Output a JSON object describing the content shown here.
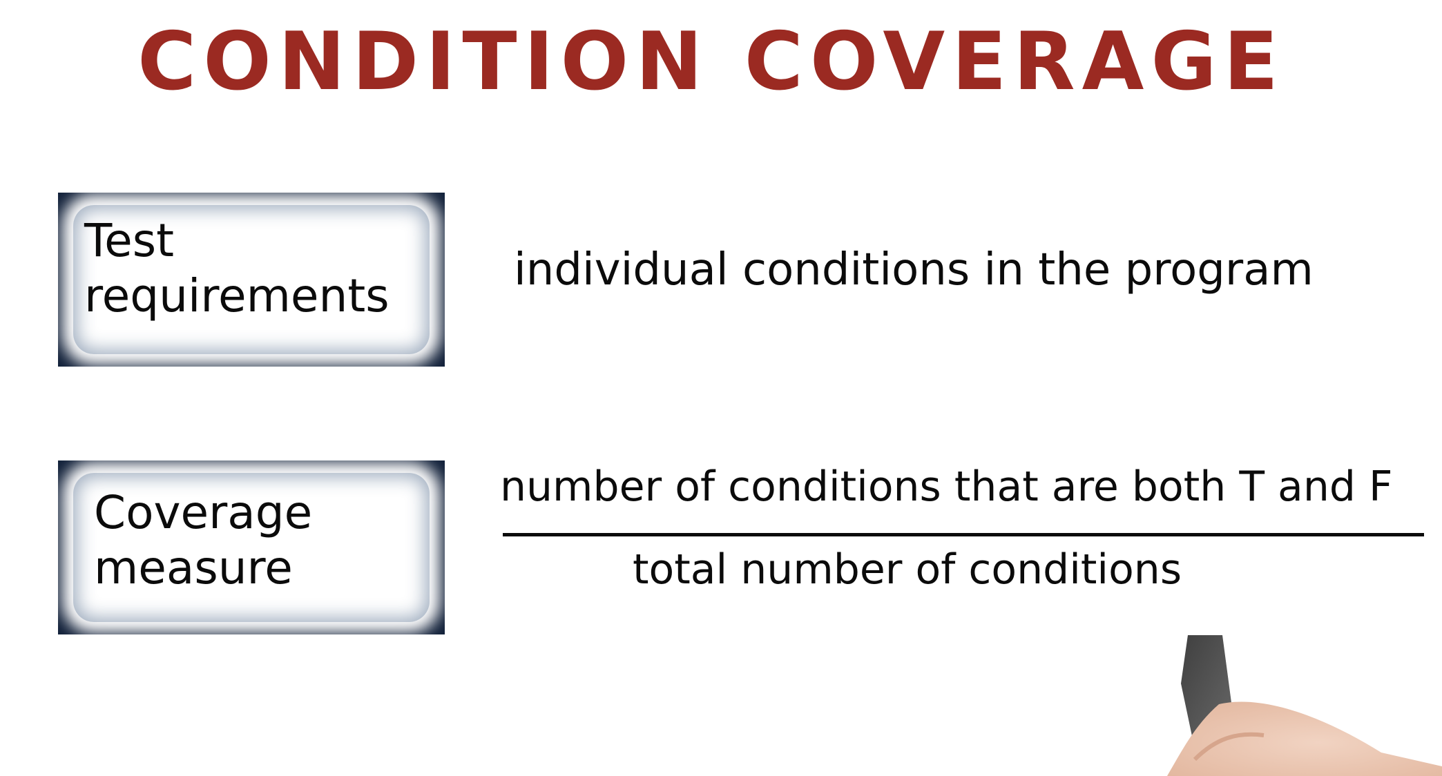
{
  "title": "CONDITION COVERAGE",
  "rows": [
    {
      "label_line1": "Test",
      "label_line2": "requirements",
      "description": "individual conditions in the program"
    },
    {
      "label_line1": "Coverage",
      "label_line2": "measure",
      "fraction": {
        "numerator": "number of conditions that are both T and F",
        "denominator": "total number of conditions"
      }
    }
  ],
  "colors": {
    "title": "#9b2a22",
    "box_border": "#12213a",
    "ink": "#0b0b0b"
  },
  "illustration": "hand-holding-marker"
}
